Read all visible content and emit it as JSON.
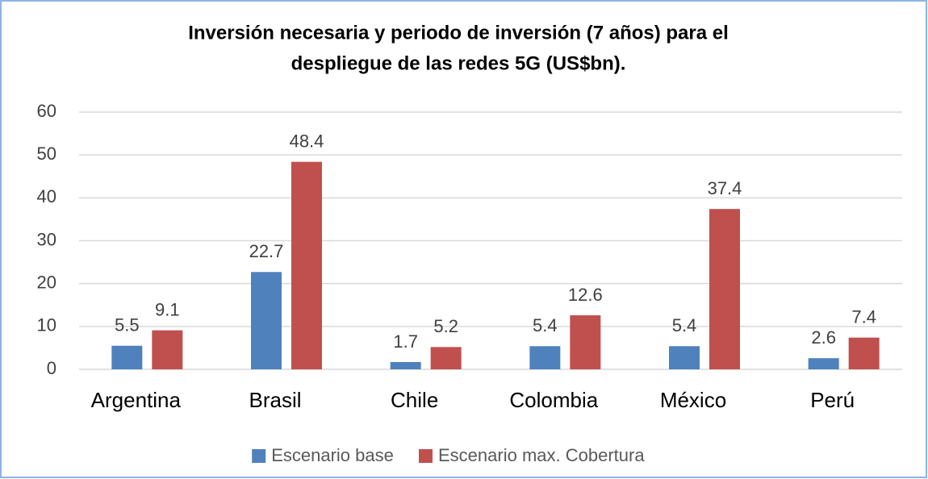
{
  "chart_data": {
    "type": "bar",
    "title": [
      "Inversión necesaria y periodo de inversión (7 años) para el",
      "despliegue de las redes 5G (US$bn)."
    ],
    "categories": [
      "Argentina",
      "Brasil",
      "Chile",
      "Colombia",
      "México",
      "Perú"
    ],
    "series": [
      {
        "name": "Escenario base",
        "color": "#4f81bd",
        "values": [
          5.5,
          22.7,
          1.7,
          5.4,
          5.4,
          2.6
        ]
      },
      {
        "name": "Escenario max. Cobertura",
        "color": "#c0504d",
        "values": [
          9.1,
          48.4,
          5.2,
          12.6,
          37.4,
          7.4
        ]
      }
    ],
    "ylim": [
      0,
      60
    ],
    "yticks": [
      0,
      10,
      20,
      30,
      40,
      50,
      60
    ],
    "grid": true,
    "legend": "bottom"
  }
}
